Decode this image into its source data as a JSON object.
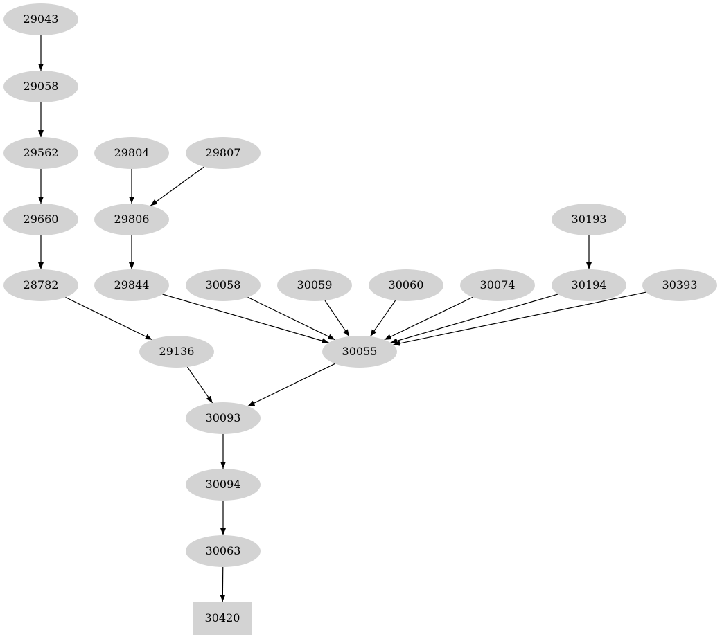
{
  "graph": {
    "node_fill": "#d3d3d3",
    "edge_color": "#000000",
    "nodes": [
      {
        "id": "29043",
        "shape": "ellipse"
      },
      {
        "id": "29058",
        "shape": "ellipse"
      },
      {
        "id": "29562",
        "shape": "ellipse"
      },
      {
        "id": "29660",
        "shape": "ellipse"
      },
      {
        "id": "28782",
        "shape": "ellipse"
      },
      {
        "id": "29804",
        "shape": "ellipse"
      },
      {
        "id": "29807",
        "shape": "ellipse"
      },
      {
        "id": "29806",
        "shape": "ellipse"
      },
      {
        "id": "29844",
        "shape": "ellipse"
      },
      {
        "id": "30058",
        "shape": "ellipse"
      },
      {
        "id": "30059",
        "shape": "ellipse"
      },
      {
        "id": "30060",
        "shape": "ellipse"
      },
      {
        "id": "30074",
        "shape": "ellipse"
      },
      {
        "id": "30193",
        "shape": "ellipse"
      },
      {
        "id": "30194",
        "shape": "ellipse"
      },
      {
        "id": "30393",
        "shape": "ellipse"
      },
      {
        "id": "29136",
        "shape": "ellipse"
      },
      {
        "id": "30055",
        "shape": "ellipse"
      },
      {
        "id": "30093",
        "shape": "ellipse"
      },
      {
        "id": "30094",
        "shape": "ellipse"
      },
      {
        "id": "30063",
        "shape": "ellipse"
      },
      {
        "id": "30420",
        "shape": "box"
      }
    ],
    "edges": [
      [
        "29043",
        "29058"
      ],
      [
        "29058",
        "29562"
      ],
      [
        "29562",
        "29660"
      ],
      [
        "29660",
        "28782"
      ],
      [
        "28782",
        "29136"
      ],
      [
        "29804",
        "29806"
      ],
      [
        "29807",
        "29806"
      ],
      [
        "29806",
        "29844"
      ],
      [
        "29844",
        "30055"
      ],
      [
        "30058",
        "30055"
      ],
      [
        "30059",
        "30055"
      ],
      [
        "30060",
        "30055"
      ],
      [
        "30074",
        "30055"
      ],
      [
        "30193",
        "30194"
      ],
      [
        "30194",
        "30055"
      ],
      [
        "30393",
        "30055"
      ],
      [
        "29136",
        "30093"
      ],
      [
        "30055",
        "30093"
      ],
      [
        "30093",
        "30094"
      ],
      [
        "30094",
        "30063"
      ],
      [
        "30063",
        "30420"
      ]
    ]
  }
}
